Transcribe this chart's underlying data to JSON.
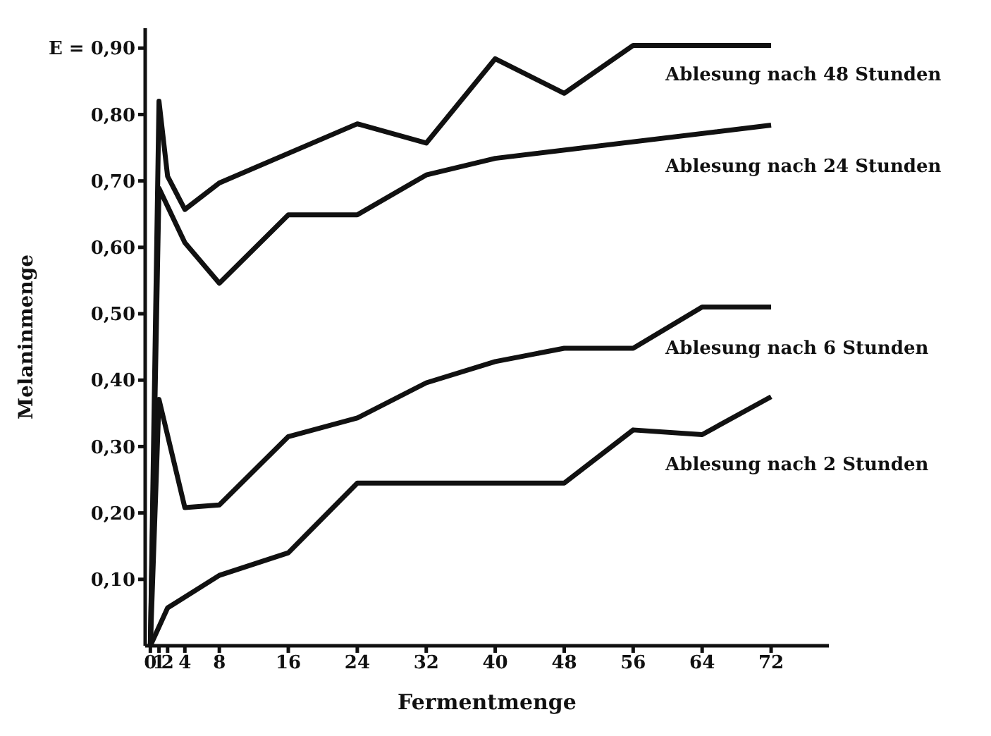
{
  "chart_data": {
    "type": "line",
    "xlabel": "Fermentmenge",
    "ylabel": "Melaninmenge",
    "xlim": [
      -0.6,
      78.7
    ],
    "xticks": [
      0,
      1,
      2,
      4,
      8,
      16,
      24,
      32,
      40,
      48,
      56,
      64,
      72
    ],
    "ylim": [
      0,
      0.93
    ],
    "yticks": [
      {
        "value": 0.1,
        "label": "0,10"
      },
      {
        "value": 0.2,
        "label": "0,20"
      },
      {
        "value": 0.3,
        "label": "0,30"
      },
      {
        "value": 0.4,
        "label": "0,40"
      },
      {
        "value": 0.5,
        "label": "0,50"
      },
      {
        "value": 0.6,
        "label": "0,60"
      },
      {
        "value": 0.7,
        "label": "0,70"
      },
      {
        "value": 0.8,
        "label": "0,80"
      },
      {
        "value": 0.9,
        "label": "E = 0,90"
      }
    ],
    "grid": false,
    "legend": false,
    "marker": "none",
    "line_style": "solid",
    "series": [
      {
        "name": "Ablesung nach 48 Stunden",
        "color": "#111111",
        "x": [
          0,
          1,
          2,
          4,
          8,
          24,
          32,
          40,
          48,
          56,
          72
        ],
        "values": [
          0,
          0.82,
          0.707,
          0.657,
          0.697,
          0.786,
          0.757,
          0.884,
          0.832,
          0.904,
          0.904
        ]
      },
      {
        "name": "Ablesung nach 24 Stunden",
        "color": "#111111",
        "x": [
          0,
          1,
          4,
          8,
          16,
          24,
          32,
          40,
          72
        ],
        "values": [
          0,
          0.689,
          0.607,
          0.546,
          0.649,
          0.649,
          0.709,
          0.734,
          0.784
        ]
      },
      {
        "name": "Ablesung nach 6 Stunden",
        "color": "#111111",
        "x": [
          0,
          1,
          4,
          8,
          16,
          24,
          32,
          40,
          48,
          56,
          64,
          72
        ],
        "values": [
          0,
          0.371,
          0.208,
          0.212,
          0.315,
          0.343,
          0.396,
          0.428,
          0.448,
          0.448,
          0.51,
          0.51
        ]
      },
      {
        "name": "Ablesung nach 2 Stunden",
        "color": "#111111",
        "x": [
          0,
          2,
          8,
          16,
          24,
          48,
          56,
          64,
          72
        ],
        "values": [
          0,
          0.057,
          0.106,
          0.14,
          0.245,
          0.245,
          0.325,
          0.318,
          0.375
        ]
      }
    ]
  }
}
